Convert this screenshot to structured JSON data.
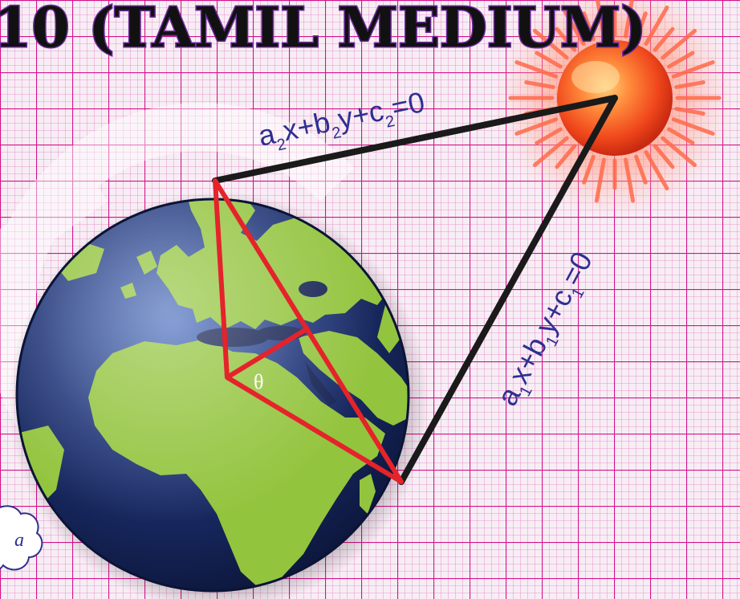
{
  "header": {
    "title": "10 (TAMIL MEDIUM)"
  },
  "diagram": {
    "line1": {
      "a": "a",
      "s1": "1",
      "x": "x+b",
      "s2": "1",
      "y": "y+c",
      "s3": "1",
      "rhs": "=0"
    },
    "line2": {
      "a": "a",
      "s1": "2",
      "x": "x+b",
      "s2": "2",
      "y": "y+c",
      "s3": "2",
      "rhs": "=0"
    },
    "angle_label": "θ"
  },
  "badge": {
    "text": "a"
  },
  "colors": {
    "grid_major": "#d4148a",
    "grid_minor": "#e77cbf",
    "background": "#f7eef5",
    "line_black": "#1a1a1a",
    "triangle_red": "#e5232b",
    "equation_text": "#2f2f91",
    "title_fill": "#111111",
    "title_outline": "#6a2a9a",
    "sun": "#f0471c",
    "earth_ocean": "#172454",
    "earth_land": "#93c43e"
  }
}
